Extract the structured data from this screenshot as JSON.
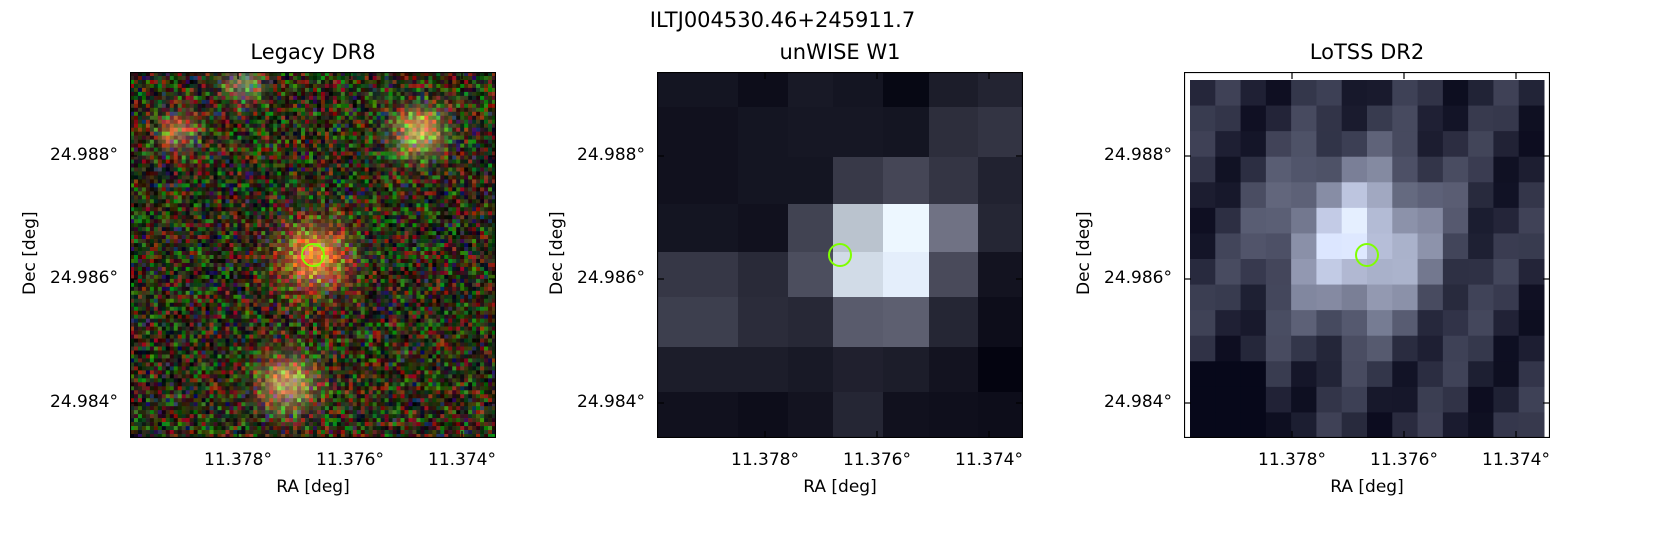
{
  "figure": {
    "suptitle": "ILTJ004530.46+245911.7"
  },
  "panels": [
    {
      "title": "Legacy DR8",
      "xlabel": "RA [deg]",
      "ylabel": "Dec [deg]",
      "xticks": [
        "11.378°",
        "11.376°",
        "11.374°"
      ],
      "yticks": [
        "24.988°",
        "24.986°",
        "24.984°"
      ],
      "image_kind": "rgb-noise",
      "marker_color": "#7fff00"
    },
    {
      "title": "unWISE W1",
      "xlabel": "RA [deg]",
      "ylabel": "Dec [deg]",
      "xticks": [
        "11.378°",
        "11.376°",
        "11.374°"
      ],
      "yticks": [
        "24.988°",
        "24.986°",
        "24.984°"
      ],
      "image_kind": "grayscale-coarse",
      "marker_color": "#7fff00"
    },
    {
      "title": "LoTSS DR2",
      "xlabel": "RA [deg]",
      "ylabel": "Dec [deg]",
      "xticks": [
        "11.378°",
        "11.376°",
        "11.374°"
      ],
      "yticks": [
        "24.988°",
        "24.986°",
        "24.984°"
      ],
      "image_kind": "grayscale-fine",
      "marker_color": "#7fff00"
    }
  ]
}
